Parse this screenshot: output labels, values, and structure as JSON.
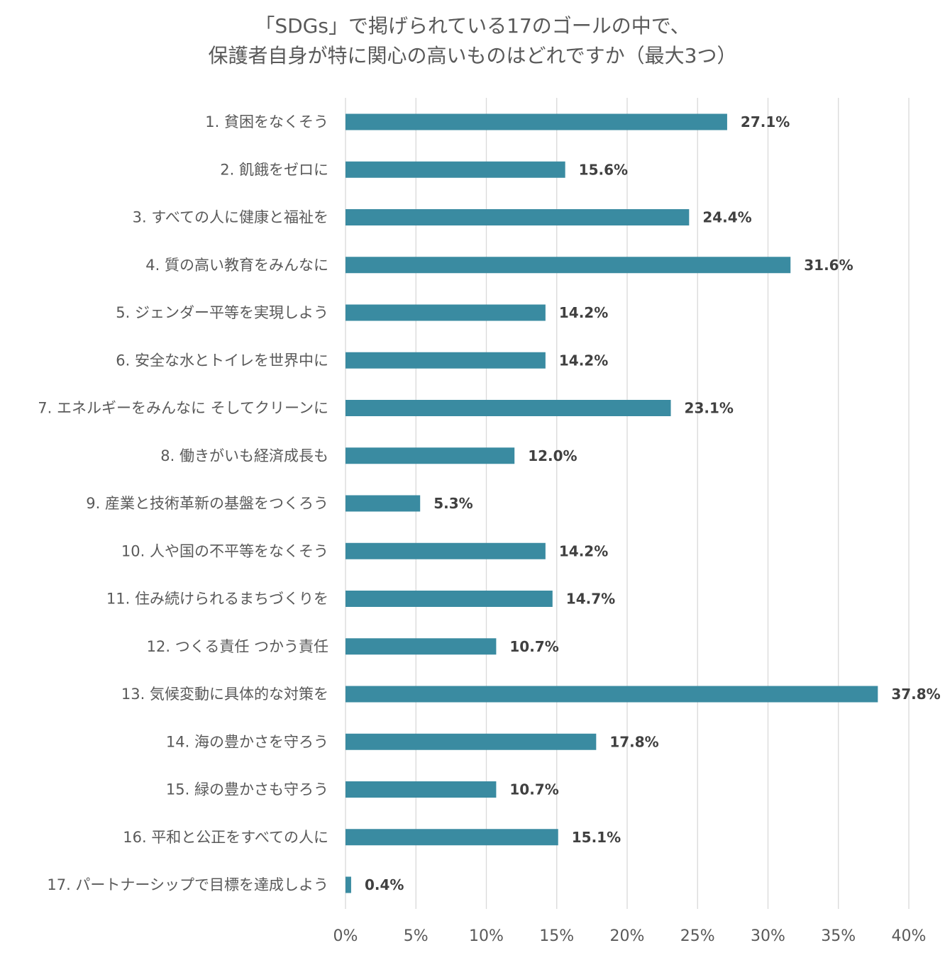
{
  "chart_data": {
    "type": "bar",
    "orientation": "horizontal",
    "title_lines": [
      "「SDGs」で掲げられている17のゴールの中で、",
      "保護者自身が特に関心の高いものはどれですか（最大3つ）"
    ],
    "categories": [
      "1.  貧困をなくそう",
      "2.  飢餓をゼロに",
      "3.  すべての人に健康と福祉を",
      "4.  質の高い教育をみんなに",
      "5.  ジェンダー平等を実現しよう",
      "6.  安全な水とトイレを世界中に",
      "7.  エネルギーをみんなに そしてクリーンに",
      "8.  働きがいも経済成長も",
      "9.  産業と技術革新の基盤をつくろう",
      "10.  人や国の不平等をなくそう",
      "11.  住み続けられるまちづくりを",
      "12.  つくる責任 つかう責任",
      "13.  気候変動に具体的な対策を",
      "14.  海の豊かさを守ろう",
      "15.  緑の豊かさも守ろう",
      "16.  平和と公正をすべての人に",
      "17.  パートナーシップで目標を達成しよう"
    ],
    "values": [
      27.1,
      15.6,
      24.4,
      31.6,
      14.2,
      14.2,
      23.1,
      12.0,
      5.3,
      14.2,
      14.7,
      10.7,
      37.8,
      17.8,
      10.7,
      15.1,
      0.4
    ],
    "data_labels": [
      "27.1%",
      "15.6%",
      "24.4%",
      "31.6%",
      "14.2%",
      "14.2%",
      "23.1%",
      "12.0%",
      "5.3%",
      "14.2%",
      "14.7%",
      "10.7%",
      "37.8%",
      "17.8%",
      "10.7%",
      "15.1%",
      "0.4%"
    ],
    "xlim": [
      0,
      40
    ],
    "x_ticks": [
      0,
      5,
      10,
      15,
      20,
      25,
      30,
      35,
      40
    ],
    "x_tick_labels": [
      "0%",
      "5%",
      "10%",
      "15%",
      "20%",
      "25%",
      "30%",
      "35%",
      "40%"
    ],
    "xlabel": "",
    "ylabel": "",
    "grid": "vertical",
    "legend": "none",
    "bar_color": "#3a8ba1"
  }
}
